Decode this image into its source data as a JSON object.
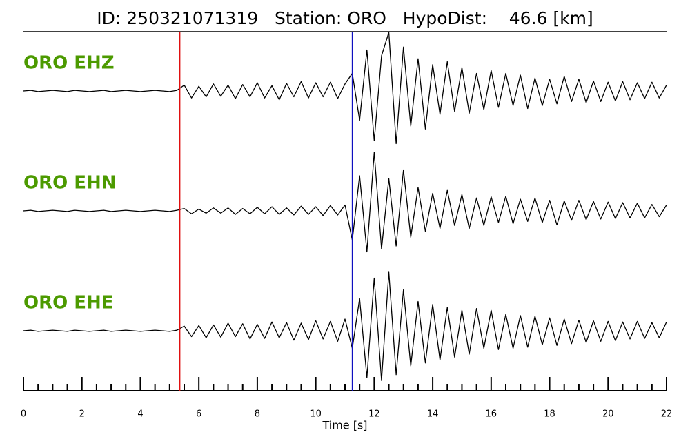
{
  "chart_data": {
    "type": "seismogram",
    "title": "ID: 250321071319   Station: ORO   HypoDist:    46.6 [km]",
    "xlabel": "Time [s]",
    "xlim": [
      0,
      22
    ],
    "xticks": [
      0,
      2,
      4,
      6,
      8,
      10,
      12,
      14,
      16,
      18,
      20,
      22
    ],
    "xminorticks": [
      0.5,
      1,
      1.5,
      2.5,
      3,
      3.5,
      4.5,
      5,
      5.5,
      6.5,
      7,
      7.5,
      8.5,
      9,
      9.5,
      10.5,
      11,
      11.5,
      12.5,
      13,
      13.5,
      14.5,
      15,
      15.5,
      16.5,
      17,
      17.5,
      18.5,
      19,
      19.5,
      20.5,
      21,
      21.5
    ],
    "ylim": [
      -1,
      1
    ],
    "label_color": "#4c9a00",
    "picks": [
      {
        "x": 5.35,
        "color": "#e01010"
      },
      {
        "x": 11.25,
        "color": "#1010c0"
      }
    ],
    "x": [
      0,
      0.25,
      0.5,
      0.75,
      1,
      1.25,
      1.5,
      1.75,
      2,
      2.25,
      2.5,
      2.75,
      3,
      3.25,
      3.5,
      3.75,
      4,
      4.25,
      4.5,
      4.75,
      5,
      5.25,
      5.5,
      5.75,
      6,
      6.25,
      6.5,
      6.75,
      7,
      7.25,
      7.5,
      7.75,
      8,
      8.25,
      8.5,
      8.75,
      9,
      9.25,
      9.5,
      9.75,
      10,
      10.25,
      10.5,
      10.75,
      11,
      11.25,
      11.5,
      11.75,
      12,
      12.25,
      12.5,
      12.75,
      13,
      13.25,
      13.5,
      13.75,
      14,
      14.25,
      14.5,
      14.75,
      15,
      15.25,
      15.5,
      15.75,
      16,
      16.25,
      16.5,
      16.75,
      17,
      17.25,
      17.5,
      17.75,
      18,
      18.25,
      18.5,
      18.75,
      19,
      19.25,
      19.5,
      19.75,
      20,
      20.25,
      20.5,
      20.75,
      21,
      21.25,
      21.5,
      21.75,
      22
    ],
    "series": [
      {
        "name": "ORO EHZ",
        "color": "#000000",
        "values": [
          0,
          0.01,
          -0.01,
          0,
          0.01,
          0,
          -0.01,
          0.01,
          0,
          -0.01,
          0,
          0.01,
          -0.01,
          0,
          0.01,
          0,
          -0.01,
          0,
          0.01,
          0,
          -0.01,
          0.01,
          0.1,
          -0.12,
          0.08,
          -0.1,
          0.12,
          -0.09,
          0.1,
          -0.13,
          0.11,
          -0.1,
          0.14,
          -0.12,
          0.09,
          -0.15,
          0.13,
          -0.1,
          0.16,
          -0.12,
          0.14,
          -0.1,
          0.15,
          -0.13,
          0.12,
          0.3,
          -0.5,
          0.7,
          -0.85,
          0.6,
          1.0,
          -0.9,
          0.75,
          -0.6,
          0.55,
          -0.65,
          0.45,
          -0.4,
          0.5,
          -0.35,
          0.4,
          -0.38,
          0.3,
          -0.32,
          0.35,
          -0.28,
          0.3,
          -0.25,
          0.27,
          -0.3,
          0.22,
          -0.25,
          0.2,
          -0.22,
          0.25,
          -0.18,
          0.2,
          -0.2,
          0.17,
          -0.18,
          0.15,
          -0.17,
          0.16,
          -0.15,
          0.14,
          -0.13,
          0.15,
          -0.12,
          0.1
        ]
      },
      {
        "name": "ORO EHN",
        "color": "#000000",
        "values": [
          0,
          0.01,
          -0.01,
          0,
          0.01,
          0,
          -0.01,
          0.01,
          0,
          -0.01,
          0,
          0.01,
          -0.01,
          0,
          0.01,
          0,
          -0.01,
          0,
          0.01,
          0,
          -0.01,
          0.01,
          0.04,
          -0.05,
          0.03,
          -0.04,
          0.05,
          -0.04,
          0.05,
          -0.06,
          0.04,
          -0.05,
          0.06,
          -0.05,
          0.07,
          -0.06,
          0.05,
          -0.07,
          0.08,
          -0.06,
          0.07,
          -0.08,
          0.09,
          -0.07,
          0.1,
          -0.5,
          0.6,
          -0.7,
          1.0,
          -0.65,
          0.55,
          -0.6,
          0.7,
          -0.45,
          0.4,
          -0.35,
          0.3,
          -0.3,
          0.35,
          -0.25,
          0.28,
          -0.3,
          0.22,
          -0.25,
          0.24,
          -0.2,
          0.25,
          -0.22,
          0.2,
          -0.18,
          0.22,
          -0.2,
          0.18,
          -0.24,
          0.17,
          -0.16,
          0.18,
          -0.15,
          0.16,
          -0.14,
          0.15,
          -0.13,
          0.14,
          -0.12,
          0.13,
          -0.12,
          0.11,
          -0.1,
          0.1
        ]
      },
      {
        "name": "ORO EHE",
        "color": "#000000",
        "values": [
          0,
          0.01,
          -0.01,
          0,
          0.01,
          0,
          -0.01,
          0.01,
          0,
          -0.01,
          0,
          0.01,
          -0.01,
          0,
          0.01,
          0,
          -0.01,
          0,
          0.01,
          0,
          -0.01,
          0.01,
          0.08,
          -0.1,
          0.09,
          -0.12,
          0.1,
          -0.11,
          0.13,
          -0.1,
          0.12,
          -0.14,
          0.11,
          -0.13,
          0.15,
          -0.12,
          0.14,
          -0.16,
          0.13,
          -0.15,
          0.17,
          -0.14,
          0.16,
          -0.18,
          0.2,
          -0.3,
          0.55,
          -0.8,
          0.9,
          -0.85,
          1.0,
          -0.75,
          0.7,
          -0.6,
          0.5,
          -0.55,
          0.45,
          -0.5,
          0.4,
          -0.45,
          0.35,
          -0.4,
          0.38,
          -0.3,
          0.35,
          -0.32,
          0.28,
          -0.3,
          0.26,
          -0.28,
          0.25,
          -0.24,
          0.22,
          -0.25,
          0.2,
          -0.22,
          0.18,
          -0.2,
          0.17,
          -0.18,
          0.16,
          -0.17,
          0.15,
          -0.14,
          0.16,
          -0.13,
          0.14,
          -0.12,
          0.15
        ]
      }
    ]
  }
}
